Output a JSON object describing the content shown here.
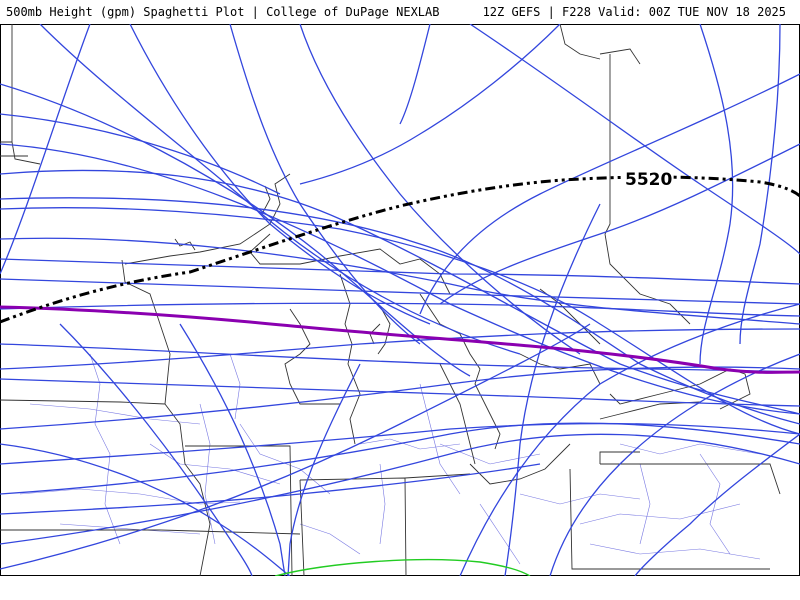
{
  "header": {
    "title": "500mb Height (gpm) Spaghetti Plot | College of DuPage NEXLAB",
    "run_info": "12Z GEFS | F228 Valid: 00Z TUE NOV 18 2025"
  },
  "map": {
    "contour_label": "5520",
    "colors": {
      "ensemble_members": "#3346dd",
      "control_run": "#000000",
      "mean_highlight": "#8a00b0",
      "secondary_contour": "#22cc22",
      "borders": "#333333",
      "roads": "#4a4ad8"
    }
  }
}
